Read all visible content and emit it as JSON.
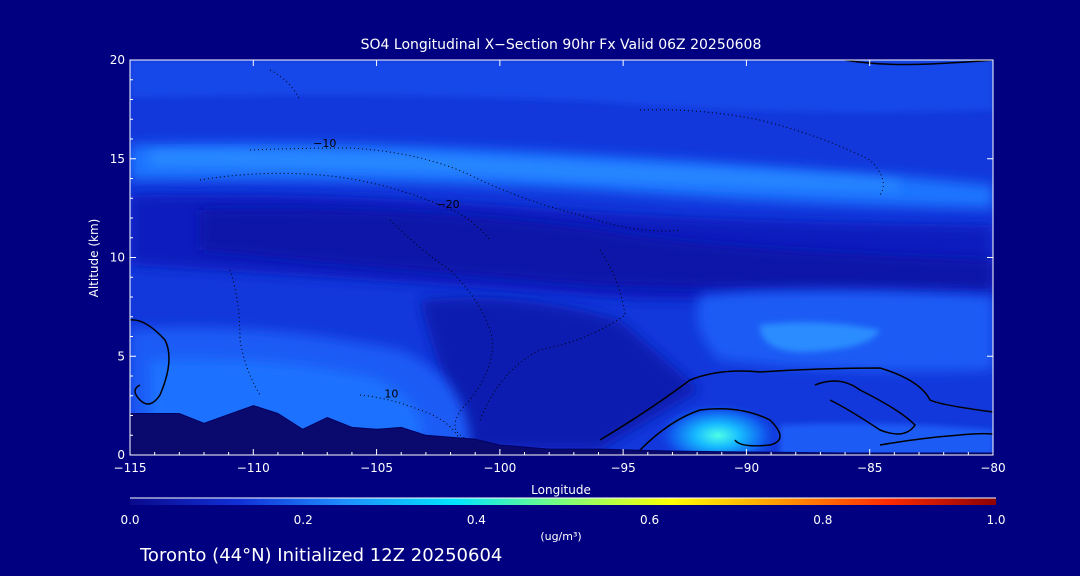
{
  "chart_data": {
    "type": "heatmap",
    "title": "SO4 Longitudinal X−Section 90hr  Fx Valid 06Z 20250608",
    "xlabel": "Longitude",
    "ylabel": "Altitude (km)",
    "xlim": [
      -115,
      -80
    ],
    "ylim": [
      0,
      20
    ],
    "x_ticks": [
      -115,
      -110,
      -105,
      -100,
      -95,
      -90,
      -85,
      -80
    ],
    "x_tick_labels": [
      "−115",
      "−110",
      "−105",
      "−100",
      "−95",
      "−90",
      "−85",
      "−80"
    ],
    "y_ticks": [
      0,
      5,
      10,
      15,
      20
    ],
    "y_tick_labels": [
      "0",
      "5",
      "10",
      "15",
      "20"
    ],
    "colorbar": {
      "min": 0.0,
      "max": 1.0,
      "ticks": [
        0.0,
        0.2,
        0.4,
        0.6,
        0.8,
        1.0
      ],
      "tick_labels": [
        "0.0",
        "0.2",
        "0.4",
        "0.6",
        "0.8",
        "1.0"
      ],
      "unit_label": "(ug/m³)",
      "colors": [
        "#0a0a8c",
        "#1030d8",
        "#1e90ff",
        "#00e5ff",
        "#7cff7a",
        "#ffff00",
        "#ff9900",
        "#ff2a00",
        "#8b0000"
      ]
    },
    "contour_labels": [
      {
        "text": "−10",
        "lon": -107.1,
        "alt": 15.6
      },
      {
        "text": "−20",
        "lon": -102.1,
        "alt": 12.5
      },
      {
        "text": "10",
        "lon": -104.4,
        "alt": 2.9
      }
    ],
    "terrain": [
      [
        -115,
        2.1
      ],
      [
        -113,
        2.1
      ],
      [
        -112,
        1.6
      ],
      [
        -110,
        2.5
      ],
      [
        -109,
        2.1
      ],
      [
        -108,
        1.3
      ],
      [
        -107,
        1.9
      ],
      [
        -106,
        1.4
      ],
      [
        -105,
        1.3
      ],
      [
        -104,
        1.4
      ],
      [
        -103,
        1.0
      ],
      [
        -101,
        0.8
      ],
      [
        -100,
        0.5
      ],
      [
        -98,
        0.3
      ],
      [
        -96,
        0.3
      ],
      [
        -93,
        0.2
      ],
      [
        -90,
        0.15
      ],
      [
        -86,
        0.1
      ],
      [
        -80,
        0.1
      ]
    ],
    "concentration_regions": [
      {
        "name": "upper band",
        "lon_range": [
          -115,
          -80
        ],
        "alt_range": [
          14.5,
          16.5
        ],
        "value": 0.24
      },
      {
        "name": "mid plume",
        "lon_range": [
          -87,
          -84
        ],
        "alt_range": [
          5.5,
          6.5
        ],
        "value": 0.28
      },
      {
        "name": "surface max",
        "lon": -90.9,
        "alt": 1.6,
        "value": 0.42
      },
      {
        "name": "low-level west",
        "lon_range": [
          -115,
          -101
        ],
        "alt_range": [
          0.5,
          4.5
        ],
        "value": 0.18
      }
    ]
  },
  "footer": {
    "location_text": "Toronto (44°N) Initialized 12Z 20250604"
  },
  "colors": {
    "background": "#010080",
    "axis": "#ffffff",
    "contour": "#000000"
  }
}
